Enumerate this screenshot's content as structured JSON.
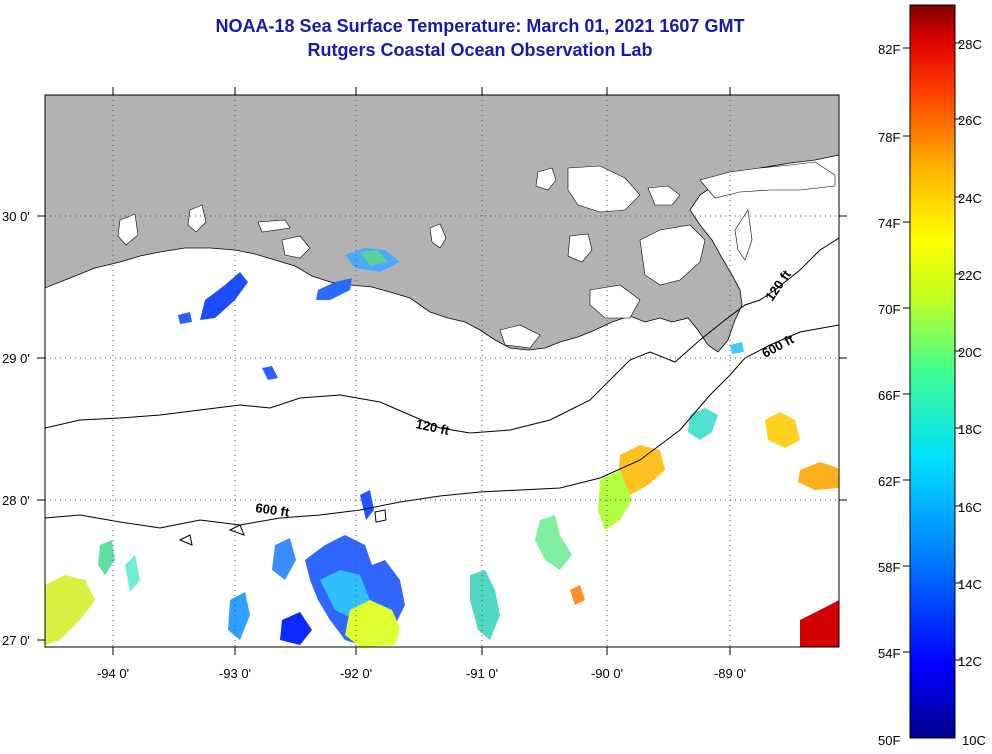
{
  "title": {
    "line1": "NOAA-18 Sea Surface Temperature:  March 01, 2021 1607 GMT",
    "line2": "Rutgers Coastal Ocean Observation Lab"
  },
  "map": {
    "lat_labels": [
      "30 0'",
      "29 0'",
      "28 0'",
      "27 0'"
    ],
    "lon_labels": [
      "-94 0'",
      "-93 0'",
      "-92 0'",
      "-91 0'",
      "-90 0'",
      "-89 0'"
    ],
    "isobath_labels": [
      "120 ft",
      "600 ft",
      "120 ft",
      "600 ft"
    ],
    "colors": {
      "land": "#b2b2b2",
      "grid": "#555555",
      "contour": "#000000"
    }
  },
  "colorbar": {
    "fahrenheit": [
      "82F",
      "78F",
      "74F",
      "70F",
      "66F",
      "62F",
      "58F",
      "54F",
      "50F"
    ],
    "celsius": [
      "28C",
      "26C",
      "24C",
      "22C",
      "20C",
      "18C",
      "16C",
      "14C",
      "12C",
      "10C"
    ],
    "scale": [
      "#00008f",
      "#0000ff",
      "#0080ff",
      "#00e0ff",
      "#40ff90",
      "#c0ff20",
      "#ffff00",
      "#ffb000",
      "#ff4000",
      "#e00000",
      "#800000"
    ]
  }
}
